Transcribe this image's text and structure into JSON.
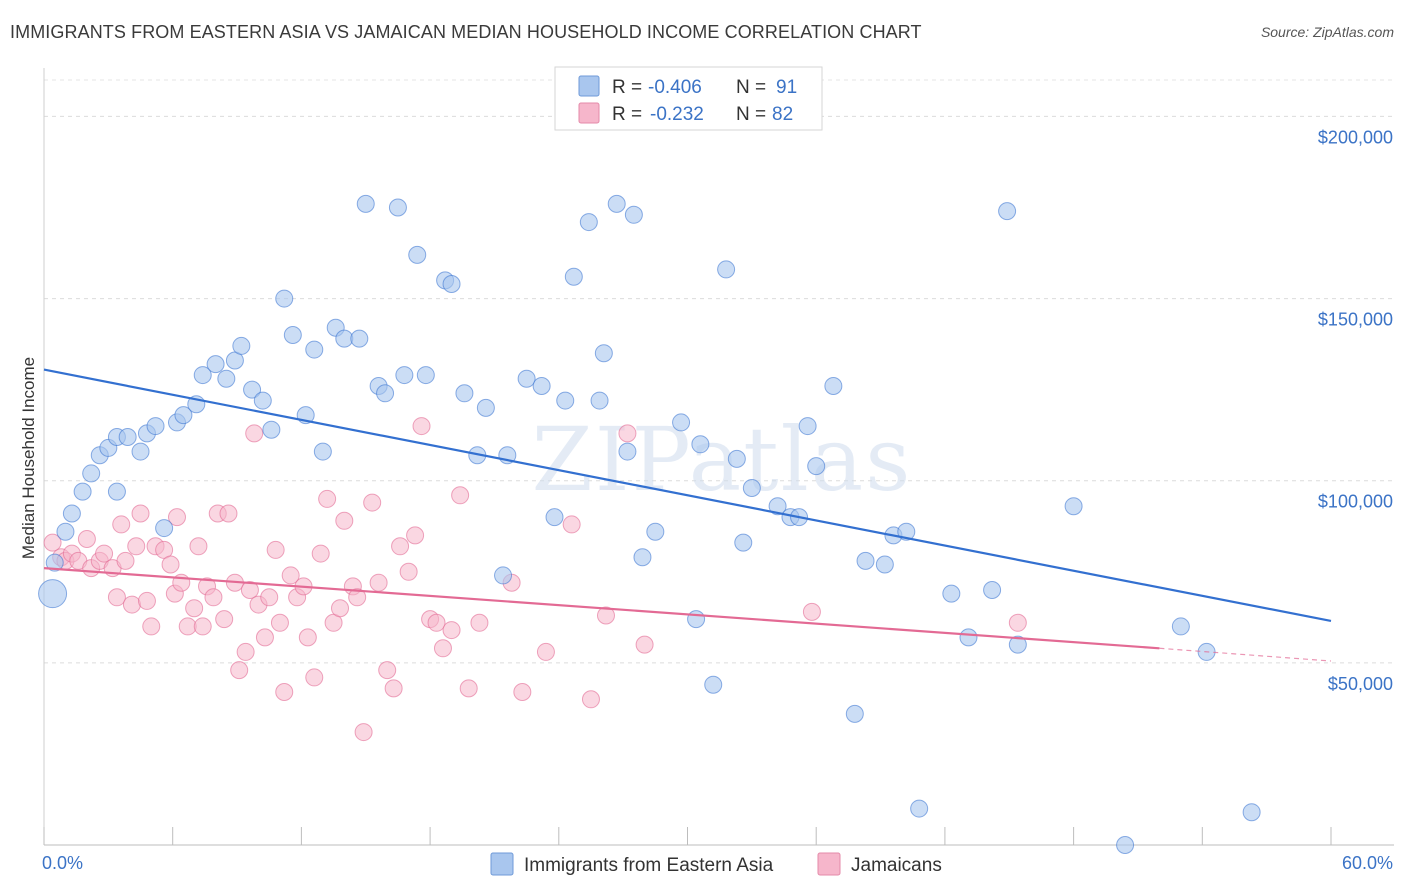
{
  "header": {
    "title": "IMMIGRANTS FROM EASTERN ASIA VS JAMAICAN MEDIAN HOUSEHOLD INCOME CORRELATION CHART",
    "source": "Source: ZipAtlas.com"
  },
  "watermark": "ZIPatlas",
  "colors": {
    "blue": "#3370d0",
    "blue_fill": "#a9c6ee",
    "pink": "#e36a94",
    "pink_fill": "#f6b6cb",
    "tick_text": "#3b73c6"
  },
  "chart_data": {
    "type": "scatter",
    "xlabel": "",
    "ylabel": "Median Household Income",
    "xlim": [
      0,
      60
    ],
    "ylim": [
      0,
      210000
    ],
    "x_tick_labels": [
      "0.0%",
      "60.0%"
    ],
    "y_ticks": [
      50000,
      100000,
      150000,
      200000
    ],
    "y_tick_labels": [
      "$50,000",
      "$100,000",
      "$150,000",
      "$200,000"
    ],
    "grid": "horizontal dashed",
    "legend": [
      {
        "r_label": "R =",
        "r_value": "-0.406",
        "n_label": "N =",
        "n_value": "91"
      },
      {
        "r_label": "R =",
        "r_value": "-0.232",
        "n_label": "N =",
        "n_value": "82"
      }
    ],
    "series": [
      {
        "name": "Immigrants from Eastern Asia",
        "trend": {
          "x": [
            0,
            60
          ],
          "y": [
            130500,
            61500
          ]
        },
        "points": [
          [
            0.4,
            69000
          ],
          [
            0.5,
            77500
          ],
          [
            1.0,
            86000
          ],
          [
            1.3,
            91000
          ],
          [
            1.8,
            97000
          ],
          [
            2.2,
            102000
          ],
          [
            2.6,
            107000
          ],
          [
            3.0,
            109000
          ],
          [
            3.4,
            112000
          ],
          [
            3.4,
            97000
          ],
          [
            3.9,
            112000
          ],
          [
            4.5,
            108000
          ],
          [
            4.8,
            113000
          ],
          [
            5.2,
            115000
          ],
          [
            5.6,
            87000
          ],
          [
            6.2,
            116000
          ],
          [
            6.5,
            118000
          ],
          [
            7.1,
            121000
          ],
          [
            7.4,
            129000
          ],
          [
            8.0,
            132000
          ],
          [
            8.5,
            128000
          ],
          [
            8.9,
            133000
          ],
          [
            9.2,
            137000
          ],
          [
            9.7,
            125000
          ],
          [
            10.2,
            122000
          ],
          [
            10.6,
            114000
          ],
          [
            11.2,
            150000
          ],
          [
            11.6,
            140000
          ],
          [
            12.2,
            118000
          ],
          [
            12.6,
            136000
          ],
          [
            13.0,
            108000
          ],
          [
            13.6,
            142000
          ],
          [
            14.0,
            139000
          ],
          [
            14.7,
            139000
          ],
          [
            15.0,
            176000
          ],
          [
            15.6,
            126000
          ],
          [
            15.9,
            124000
          ],
          [
            16.5,
            175000
          ],
          [
            16.8,
            129000
          ],
          [
            17.4,
            162000
          ],
          [
            17.8,
            129000
          ],
          [
            18.7,
            155000
          ],
          [
            19.0,
            154000
          ],
          [
            19.6,
            124000
          ],
          [
            20.2,
            107000
          ],
          [
            20.6,
            120000
          ],
          [
            21.4,
            74000
          ],
          [
            21.6,
            107000
          ],
          [
            22.5,
            128000
          ],
          [
            23.2,
            126000
          ],
          [
            23.8,
            90000
          ],
          [
            24.3,
            122000
          ],
          [
            24.7,
            156000
          ],
          [
            25.4,
            171000
          ],
          [
            25.9,
            122000
          ],
          [
            26.1,
            135000
          ],
          [
            26.7,
            176000
          ],
          [
            27.2,
            108000
          ],
          [
            27.5,
            173000
          ],
          [
            27.9,
            79000
          ],
          [
            28.5,
            86000
          ],
          [
            29.7,
            116000
          ],
          [
            30.6,
            110000
          ],
          [
            30.4,
            62000
          ],
          [
            31.2,
            44000
          ],
          [
            31.8,
            158000
          ],
          [
            32.3,
            106000
          ],
          [
            32.6,
            83000
          ],
          [
            33.0,
            98000
          ],
          [
            34.2,
            93000
          ],
          [
            34.8,
            90000
          ],
          [
            35.6,
            115000
          ],
          [
            35.2,
            90000
          ],
          [
            36.0,
            104000
          ],
          [
            36.8,
            126000
          ],
          [
            37.8,
            36000
          ],
          [
            38.3,
            78000
          ],
          [
            39.2,
            77000
          ],
          [
            39.6,
            85000
          ],
          [
            40.2,
            86000
          ],
          [
            40.8,
            10000
          ],
          [
            42.3,
            69000
          ],
          [
            43.1,
            57000
          ],
          [
            44.2,
            70000
          ],
          [
            44.9,
            174000
          ],
          [
            45.4,
            55000
          ],
          [
            48.0,
            93000
          ],
          [
            50.4,
            0
          ],
          [
            53.0,
            60000
          ],
          [
            56.3,
            9000
          ],
          [
            54.2,
            53000
          ]
        ]
      },
      {
        "name": "Jamaicans",
        "trend": {
          "x": [
            0,
            52
          ],
          "y": [
            76000,
            54000
          ]
        },
        "trend_dashed": {
          "x": [
            52,
            60
          ],
          "y": [
            54000,
            50500
          ]
        },
        "points": [
          [
            0.4,
            83000
          ],
          [
            0.8,
            79000
          ],
          [
            1.0,
            78000
          ],
          [
            1.3,
            80000
          ],
          [
            1.6,
            78000
          ],
          [
            2.0,
            84000
          ],
          [
            2.2,
            76000
          ],
          [
            2.6,
            78000
          ],
          [
            2.8,
            80000
          ],
          [
            3.2,
            76000
          ],
          [
            3.4,
            68000
          ],
          [
            3.6,
            88000
          ],
          [
            3.8,
            78000
          ],
          [
            4.1,
            66000
          ],
          [
            4.3,
            82000
          ],
          [
            4.5,
            91000
          ],
          [
            4.8,
            67000
          ],
          [
            5.0,
            60000
          ],
          [
            5.2,
            82000
          ],
          [
            5.6,
            81000
          ],
          [
            5.9,
            77000
          ],
          [
            6.1,
            69000
          ],
          [
            6.2,
            90000
          ],
          [
            6.4,
            72000
          ],
          [
            6.7,
            60000
          ],
          [
            7.0,
            65000
          ],
          [
            7.2,
            82000
          ],
          [
            7.4,
            60000
          ],
          [
            7.6,
            71000
          ],
          [
            7.9,
            68000
          ],
          [
            8.1,
            91000
          ],
          [
            8.4,
            62000
          ],
          [
            8.6,
            91000
          ],
          [
            8.9,
            72000
          ],
          [
            9.1,
            48000
          ],
          [
            9.4,
            53000
          ],
          [
            9.6,
            70000
          ],
          [
            9.8,
            113000
          ],
          [
            10.0,
            66000
          ],
          [
            10.3,
            57000
          ],
          [
            10.5,
            68000
          ],
          [
            10.8,
            81000
          ],
          [
            11.0,
            61000
          ],
          [
            11.2,
            42000
          ],
          [
            11.5,
            74000
          ],
          [
            11.8,
            68000
          ],
          [
            12.1,
            71000
          ],
          [
            12.3,
            57000
          ],
          [
            12.6,
            46000
          ],
          [
            12.9,
            80000
          ],
          [
            13.2,
            95000
          ],
          [
            13.5,
            61000
          ],
          [
            13.8,
            65000
          ],
          [
            14.0,
            89000
          ],
          [
            14.4,
            71000
          ],
          [
            14.6,
            68000
          ],
          [
            14.9,
            31000
          ],
          [
            15.3,
            94000
          ],
          [
            15.6,
            72000
          ],
          [
            16.0,
            48000
          ],
          [
            16.3,
            43000
          ],
          [
            16.6,
            82000
          ],
          [
            17.0,
            75000
          ],
          [
            17.3,
            85000
          ],
          [
            17.6,
            115000
          ],
          [
            18.0,
            62000
          ],
          [
            18.3,
            61000
          ],
          [
            18.6,
            54000
          ],
          [
            19.0,
            59000
          ],
          [
            19.4,
            96000
          ],
          [
            19.8,
            43000
          ],
          [
            20.3,
            61000
          ],
          [
            21.8,
            72000
          ],
          [
            22.3,
            42000
          ],
          [
            23.4,
            53000
          ],
          [
            24.6,
            88000
          ],
          [
            25.5,
            40000
          ],
          [
            26.2,
            63000
          ],
          [
            27.2,
            113000
          ],
          [
            28.0,
            55000
          ],
          [
            35.8,
            64000
          ],
          [
            45.4,
            61000
          ]
        ]
      }
    ]
  },
  "bottom_legend": {
    "items": [
      "Immigrants from Eastern Asia",
      "Jamaicans"
    ]
  }
}
